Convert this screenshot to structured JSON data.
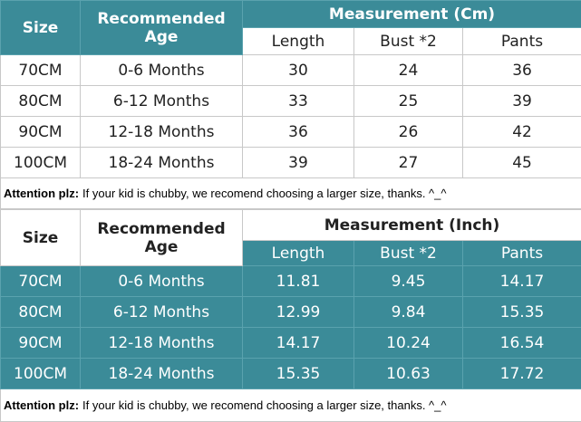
{
  "tables": [
    {
      "header": {
        "size": "Size",
        "age": "Recommended Age",
        "group": "Measurement (Cm)",
        "columns": [
          "Length",
          "Bust *2",
          "Pants"
        ]
      },
      "rows": [
        [
          "70CM",
          "0-6 Months",
          30,
          24,
          36
        ],
        [
          "80CM",
          "6-12 Months",
          33,
          25,
          39
        ],
        [
          "90CM",
          "12-18 Months",
          36,
          26,
          42
        ],
        [
          "100CM",
          "18-24 Months",
          39,
          27,
          45
        ]
      ],
      "note": {
        "label": "Attention plz:",
        "text": "If your kid is chubby, we recomend choosing a larger size, thanks. ^_^"
      }
    },
    {
      "header": {
        "size": "Size",
        "age": "Recommended Age",
        "group": "Measurement (Inch)",
        "columns": [
          "Length",
          "Bust *2",
          "Pants"
        ]
      },
      "rows": [
        [
          "70CM",
          "0-6 Months",
          11.81,
          9.45,
          14.17
        ],
        [
          "80CM",
          "6-12 Months",
          12.99,
          9.84,
          15.35
        ],
        [
          "90CM",
          "12-18 Months",
          14.17,
          10.24,
          16.54
        ],
        [
          "100CM",
          "18-24 Months",
          15.35,
          10.63,
          17.72
        ]
      ],
      "note": {
        "label": "Attention plz:",
        "text": "If your kid is chubby, we recomend choosing a larger size, thanks. ^_^"
      }
    }
  ]
}
